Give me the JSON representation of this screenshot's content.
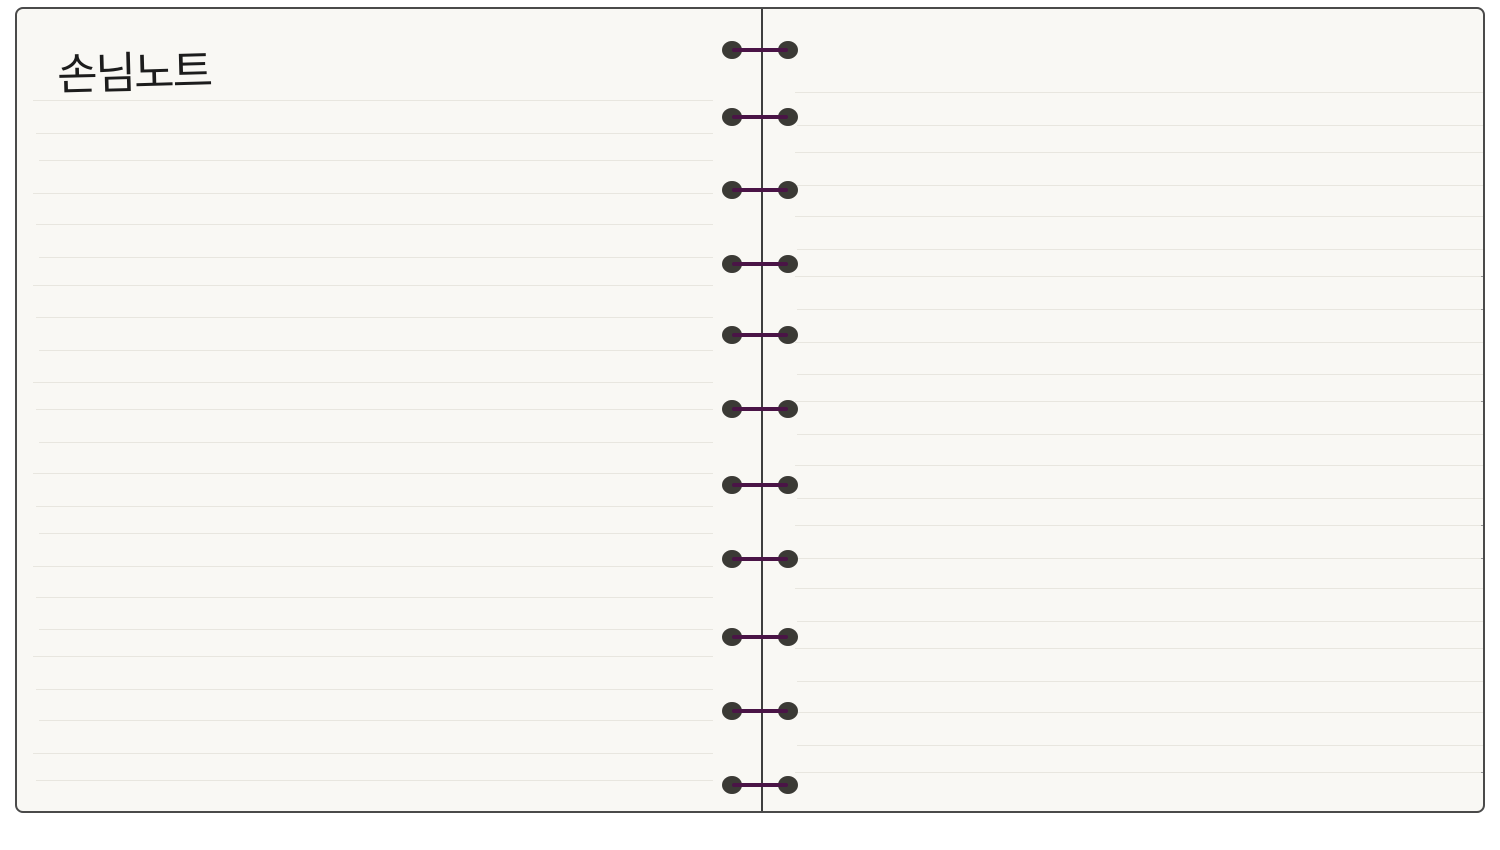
{
  "notebook": {
    "title": "손님노트"
  },
  "colors": {
    "paper": "#f9f8f4",
    "border": "#4a4a4a",
    "rule": "#e8e6df",
    "ring_hole": "#3b3a35",
    "ring_wire": "#4a1446",
    "ink": "#1c1c1c"
  },
  "icons": [
    "spiral-ring-icon"
  ]
}
